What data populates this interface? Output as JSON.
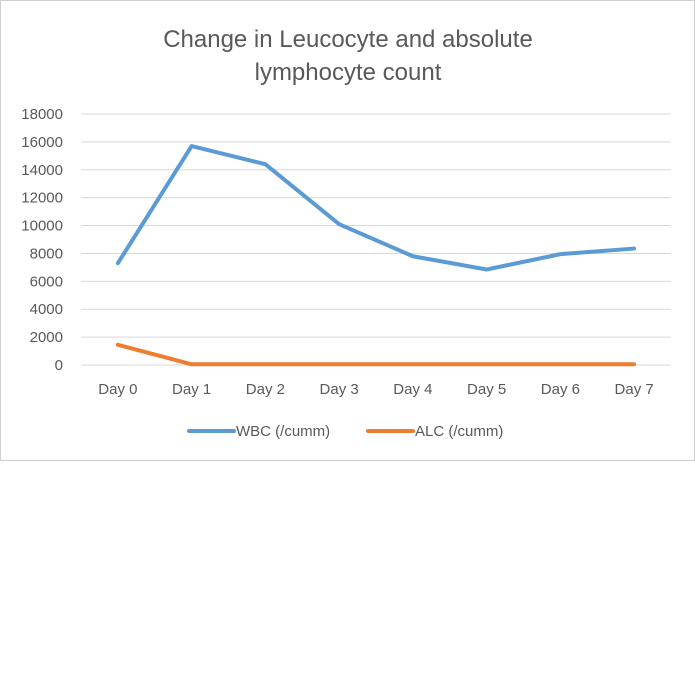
{
  "chart_data": {
    "type": "line",
    "title_lines": [
      "Change in Leucocyte and absolute",
      "lymphocyte count"
    ],
    "title": "Change in Leucocyte and absolute lymphocyte count",
    "categories": [
      "Day 0",
      "Day 1",
      "Day 2",
      "Day 3",
      "Day 4",
      "Day 5",
      "Day 6",
      "Day 7"
    ],
    "series": [
      {
        "name": "WBC (/cumm)",
        "color": "#5b9bd5",
        "values": [
          7300,
          15700,
          14400,
          10100,
          7800,
          6850,
          7950,
          8350
        ]
      },
      {
        "name": "ALC (/cumm)",
        "color": "#ed7d31",
        "values": [
          1450,
          50,
          50,
          50,
          50,
          50,
          50,
          50
        ]
      }
    ],
    "ylim": [
      0,
      18000
    ],
    "yticks": [
      "0",
      "2000",
      "4000",
      "6000",
      "8000",
      "10000",
      "12000",
      "14000",
      "16000",
      "18000"
    ],
    "xlabel": "",
    "ylabel": "",
    "grid": true,
    "legend_position": "bottom"
  }
}
